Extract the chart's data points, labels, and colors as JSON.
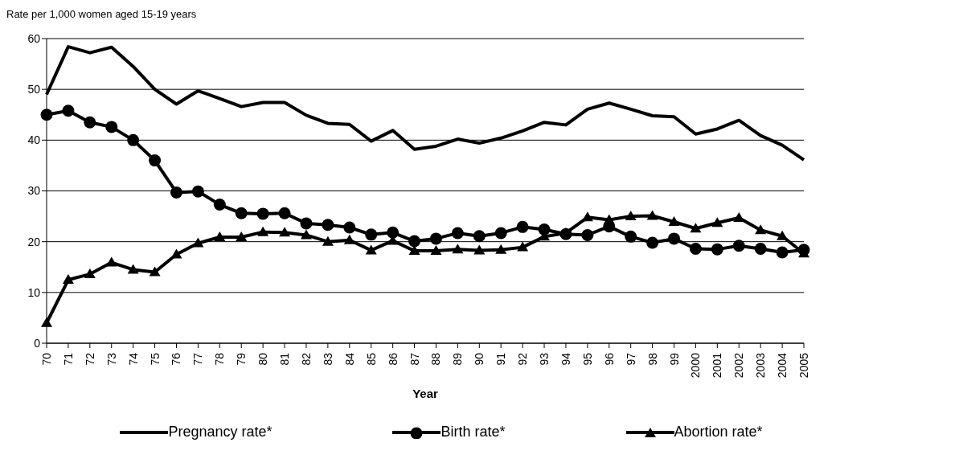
{
  "chart_data": {
    "type": "line",
    "ylabel": "Rate per 1,000 women aged 15-19 years",
    "xlabel": "Year",
    "categories": [
      "70",
      "71",
      "72",
      "73",
      "74",
      "75",
      "76",
      "77",
      "78",
      "79",
      "80",
      "81",
      "82",
      "83",
      "84",
      "85",
      "86",
      "87",
      "88",
      "89",
      "90",
      "91",
      "92",
      "93",
      "94",
      "95",
      "96",
      "97",
      "98",
      "99",
      "2000",
      "2001",
      "2002",
      "2003",
      "2004",
      "2005"
    ],
    "series": [
      {
        "name": "Pregnancy rate*",
        "color": "#000000",
        "marker": "none",
        "values": [
          49,
          58.4,
          57.2,
          58.3,
          54.5,
          50,
          47.1,
          49.7,
          48.2,
          46.6,
          47.4,
          47.4,
          44.9,
          43.3,
          43.1,
          39.8,
          41.9,
          38.2,
          38.8,
          40.2,
          39.4,
          40.4,
          41.8,
          43.5,
          43,
          46.1,
          47.3,
          46.1,
          44.8,
          44.6,
          41.2,
          42.2,
          43.9,
          40.9,
          39,
          36.1
        ]
      },
      {
        "name": "Birth rate*",
        "color": "#000000",
        "marker": "circle",
        "values": [
          45,
          45.8,
          43.5,
          42.6,
          40,
          36,
          29.7,
          29.9,
          27.3,
          25.6,
          25.5,
          25.6,
          23.6,
          23.3,
          22.8,
          21.4,
          21.8,
          20.1,
          20.6,
          21.7,
          21.1,
          21.7,
          22.9,
          22.4,
          21.5,
          21.3,
          23,
          21,
          19.8,
          20.6,
          18.6,
          18.5,
          19.2,
          18.6,
          17.9,
          18.4
        ]
      },
      {
        "name": "Abortion rate*",
        "color": "#000000",
        "marker": "triangle",
        "values": [
          4,
          12.5,
          13.6,
          15.9,
          14.5,
          14,
          17.5,
          19.7,
          20.9,
          20.9,
          21.9,
          21.8,
          21.3,
          20,
          20.3,
          18.3,
          20.2,
          18.2,
          18.2,
          18.5,
          18.3,
          18.4,
          18.9,
          21,
          21.7,
          24.8,
          24.3,
          25,
          25.1,
          23.9,
          22.6,
          23.7,
          24.7,
          22.3,
          21.1,
          17.7
        ]
      }
    ],
    "ylim": [
      0,
      60
    ],
    "yticks": [
      0,
      10,
      20,
      30,
      40,
      50,
      60
    ],
    "grid": "y",
    "legend": "bottom",
    "line_style": "solid"
  }
}
